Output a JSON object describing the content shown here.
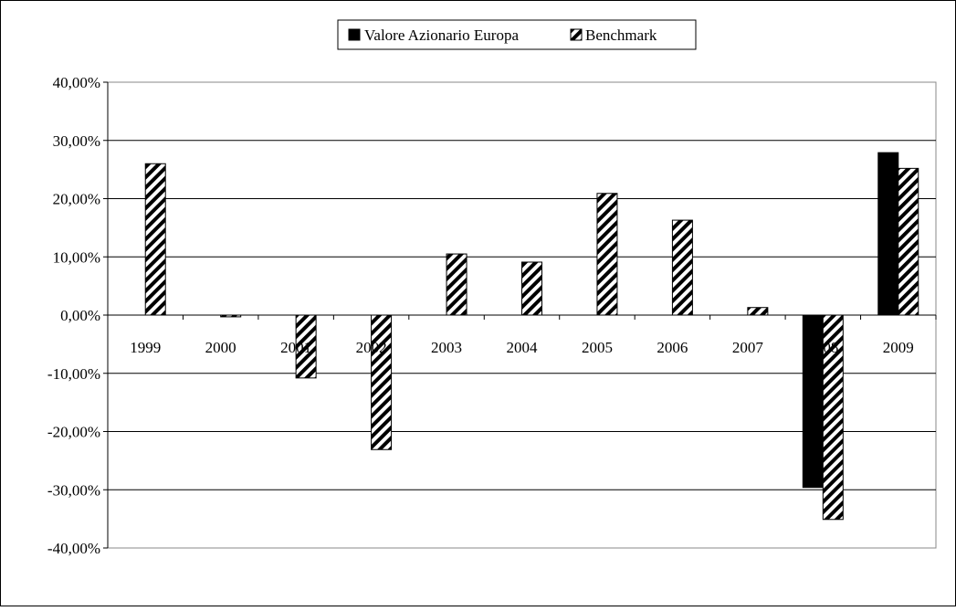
{
  "chart_data": {
    "type": "bar",
    "title": "",
    "xlabel": "",
    "ylabel": "",
    "categories": [
      "1999",
      "2000",
      "2001",
      "2002",
      "2003",
      "2004",
      "2005",
      "2006",
      "2007",
      "2008",
      "2009"
    ],
    "series": [
      {
        "name": "Valore Azionario Europa",
        "fill": "solid",
        "color": "#000000",
        "values": [
          null,
          null,
          null,
          null,
          null,
          null,
          null,
          null,
          null,
          -29.6,
          27.9
        ]
      },
      {
        "name": "Benchmark",
        "fill": "diagonal-hatch",
        "color": "#000000",
        "values": [
          26.0,
          -0.3,
          -10.8,
          -23.1,
          10.5,
          9.1,
          20.9,
          16.3,
          1.3,
          -35.1,
          25.2
        ]
      }
    ],
    "ylim": [
      -40,
      40
    ],
    "ytick_step": 10,
    "ytick_labels": [
      "40,00%",
      "30,00%",
      "20,00%",
      "10,00%",
      "0,00%",
      "-10,00%",
      "-20,00%",
      "-30,00%",
      "-40,00%"
    ],
    "grid": true,
    "legend_position": "top-center"
  }
}
